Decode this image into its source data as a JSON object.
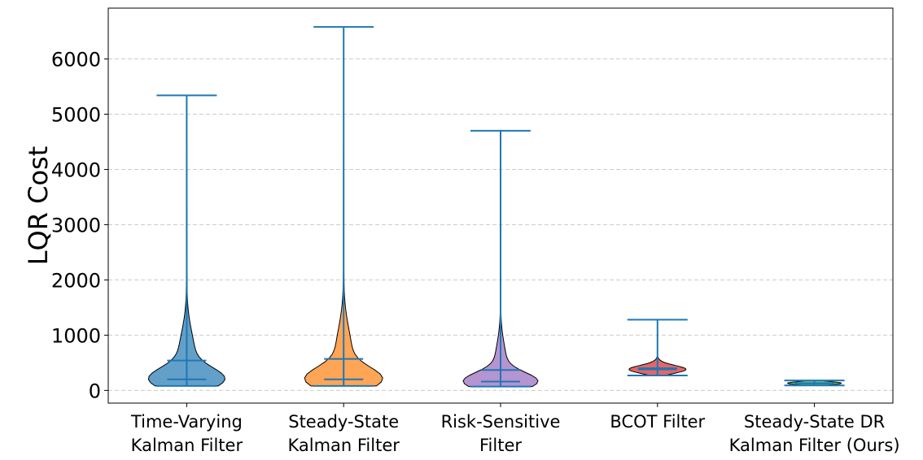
{
  "chart_data": {
    "type": "violin",
    "ylabel": "LQR Cost",
    "ylim": [
      -230,
      6920
    ],
    "yticks": [
      0,
      1000,
      2000,
      3000,
      4000,
      5000,
      6000
    ],
    "grid": "horizontal dashed",
    "categories": [
      {
        "lines": [
          "Time-Varying",
          "Kalman Filter"
        ],
        "color": "#1f77b4",
        "min": 80,
        "max": 5340,
        "mean": 540,
        "median": 200
      },
      {
        "lines": [
          "Steady-State",
          "Kalman Filter"
        ],
        "color": "#ff7f0e",
        "min": 80,
        "max": 6580,
        "mean": 570,
        "median": 200
      },
      {
        "lines": [
          "Risk-Sensitive",
          "Filter"
        ],
        "color": "#9467bd",
        "min": 70,
        "max": 4700,
        "mean": 370,
        "median": 160
      },
      {
        "lines": [
          "BCOT Filter"
        ],
        "color": "#d62728",
        "min": 270,
        "max": 1280,
        "mean": 400,
        "median": 380
      },
      {
        "lines": [
          "Steady-State DR",
          "Kalman Filter (Ours)"
        ],
        "color": "#2ca02c",
        "min": 90,
        "max": 180,
        "mean": 130,
        "median": 125
      }
    ]
  }
}
